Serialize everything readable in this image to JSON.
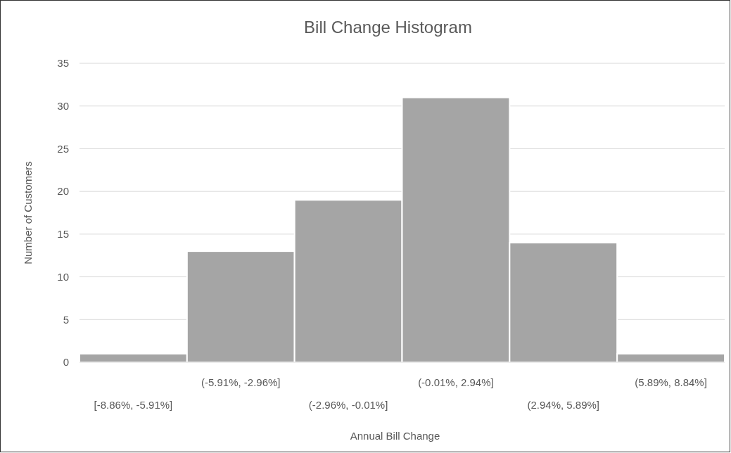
{
  "chart_data": {
    "type": "bar",
    "title": "Bill Change Histogram",
    "xlabel": "Annual Bill Change",
    "ylabel": "Number of Customers",
    "categories": [
      "[-8.86%, -5.91%]",
      "(-5.91%, -2.96%]",
      "(-2.96%, -0.01%]",
      "(-0.01%, 2.94%]",
      "(2.94%, 5.89%]",
      "(5.89%, 8.84%]"
    ],
    "values": [
      1,
      13,
      19,
      31,
      14,
      1
    ],
    "color": "#a5a5a5",
    "ylim": [
      0,
      35
    ],
    "yticks": [
      0,
      5,
      10,
      15,
      20,
      25,
      30,
      35
    ],
    "grid": "y"
  }
}
